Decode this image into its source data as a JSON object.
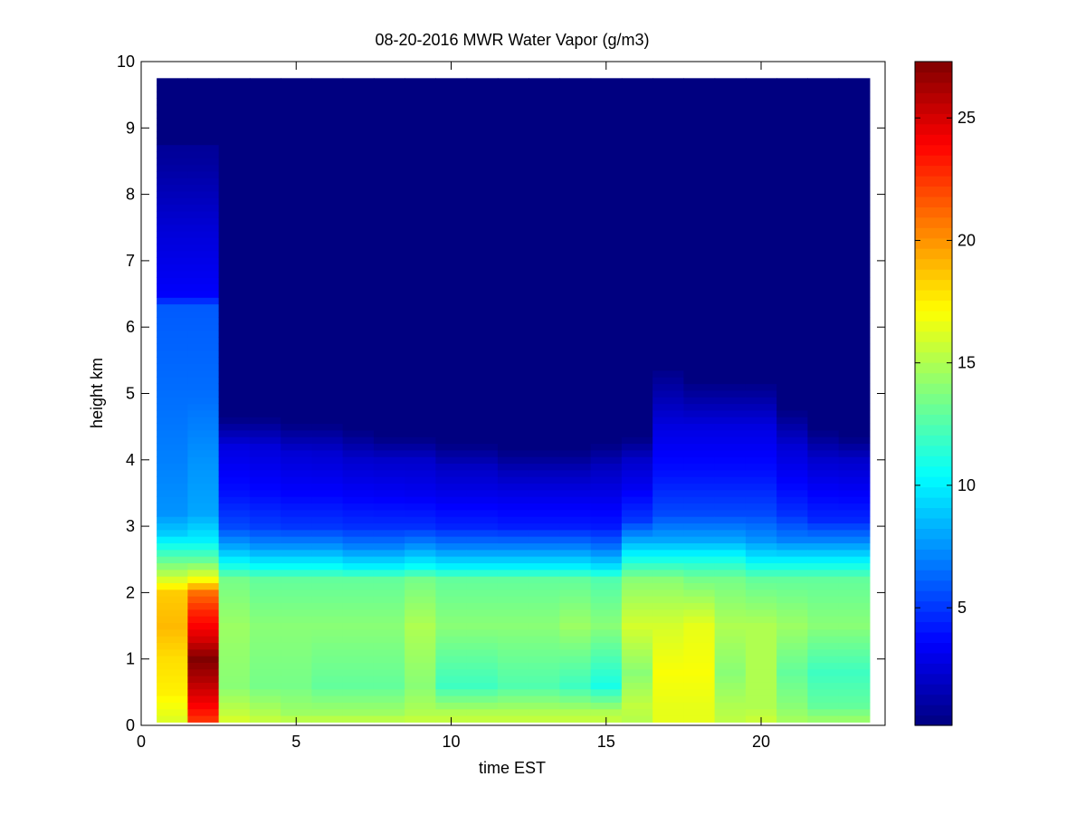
{
  "chart_data": {
    "type": "heatmap",
    "title": "08-20-2016 MWR Water Vapor (g/m3)",
    "xlabel": "time EST",
    "ylabel": "height km",
    "xlim": [
      0,
      24
    ],
    "ylim": [
      0,
      10
    ],
    "x_ticks": [
      0,
      5,
      10,
      15,
      20
    ],
    "y_ticks": [
      0,
      1,
      2,
      3,
      4,
      5,
      6,
      7,
      8,
      9,
      10
    ],
    "colorbar": {
      "colormap": "jet",
      "clim": [
        0.2,
        27.3
      ],
      "ticks": [
        5,
        10,
        15,
        20,
        25
      ]
    },
    "cell_width_hours": 1,
    "cell_height_km": 0.1,
    "grid": false,
    "columns": [
      {
        "x": 1,
        "data_top_km": 8.8,
        "profile": [
          [
            0,
            16
          ],
          [
            0.5,
            17.5
          ],
          [
            1.0,
            18
          ],
          [
            1.5,
            19
          ],
          [
            2.0,
            18.5
          ],
          [
            2.3,
            15
          ],
          [
            2.6,
            12
          ],
          [
            2.9,
            9
          ],
          [
            3.2,
            7.5
          ],
          [
            4.0,
            7
          ],
          [
            5.0,
            6.5
          ],
          [
            6.3,
            6
          ],
          [
            6.5,
            3.5
          ],
          [
            7.5,
            2.5
          ],
          [
            8.5,
            1.0
          ],
          [
            9.8,
            0.2
          ]
        ]
      },
      {
        "x": 2,
        "data_top_km": 8.8,
        "profile": [
          [
            0,
            22
          ],
          [
            0.3,
            24
          ],
          [
            0.7,
            26
          ],
          [
            1.0,
            27.3
          ],
          [
            1.3,
            25
          ],
          [
            1.7,
            23
          ],
          [
            2.0,
            21
          ],
          [
            2.2,
            17
          ],
          [
            2.5,
            13
          ],
          [
            2.8,
            10
          ],
          [
            3.2,
            8
          ],
          [
            4.0,
            7.5
          ],
          [
            5.0,
            6.5
          ],
          [
            6.3,
            6
          ],
          [
            6.5,
            3.5
          ],
          [
            7.5,
            2.5
          ],
          [
            8.5,
            1.0
          ],
          [
            9.8,
            0.2
          ]
        ]
      },
      {
        "x": 3,
        "data_top_km": 4.6,
        "profile": [
          [
            0,
            16.5
          ],
          [
            0.2,
            15.5
          ],
          [
            0.6,
            14
          ],
          [
            1.5,
            14.5
          ],
          [
            2.2,
            13.5
          ],
          [
            2.4,
            11
          ],
          [
            2.7,
            8
          ],
          [
            3.0,
            5.5
          ],
          [
            3.5,
            4
          ],
          [
            4.2,
            2.8
          ],
          [
            4.6,
            0.5
          ],
          [
            9.8,
            0.2
          ]
        ]
      },
      {
        "x": 4,
        "data_top_km": 4.6,
        "profile": [
          [
            0,
            16
          ],
          [
            0.2,
            15
          ],
          [
            0.6,
            13.5
          ],
          [
            1.5,
            14
          ],
          [
            2.2,
            13
          ],
          [
            2.4,
            10.5
          ],
          [
            2.7,
            7.5
          ],
          [
            3.0,
            5.2
          ],
          [
            3.5,
            3.8
          ],
          [
            4.2,
            2.6
          ],
          [
            4.6,
            0.5
          ],
          [
            9.8,
            0.2
          ]
        ]
      },
      {
        "x": 5,
        "data_top_km": 4.5,
        "profile": [
          [
            0,
            16
          ],
          [
            0.2,
            14.5
          ],
          [
            0.6,
            13.5
          ],
          [
            1.5,
            14
          ],
          [
            2.2,
            13
          ],
          [
            2.4,
            10.5
          ],
          [
            2.7,
            7.5
          ],
          [
            3.0,
            5
          ],
          [
            3.5,
            3.6
          ],
          [
            4.1,
            2.5
          ],
          [
            4.5,
            0.5
          ],
          [
            9.8,
            0.2
          ]
        ]
      },
      {
        "x": 6,
        "data_top_km": 4.5,
        "profile": [
          [
            0,
            16
          ],
          [
            0.2,
            14.5
          ],
          [
            0.6,
            13
          ],
          [
            1.5,
            14
          ],
          [
            2.2,
            13
          ],
          [
            2.4,
            10.5
          ],
          [
            2.7,
            7.5
          ],
          [
            3.0,
            5
          ],
          [
            3.5,
            3.6
          ],
          [
            4.1,
            2.4
          ],
          [
            4.5,
            0.5
          ],
          [
            9.8,
            0.2
          ]
        ]
      },
      {
        "x": 7,
        "data_top_km": 4.4,
        "profile": [
          [
            0,
            16
          ],
          [
            0.2,
            14.5
          ],
          [
            0.6,
            13
          ],
          [
            1.5,
            14
          ],
          [
            2.2,
            13
          ],
          [
            2.4,
            10
          ],
          [
            2.7,
            7
          ],
          [
            3.0,
            4.8
          ],
          [
            3.5,
            3.4
          ],
          [
            4.0,
            2.3
          ],
          [
            4.4,
            0.5
          ],
          [
            9.8,
            0.2
          ]
        ]
      },
      {
        "x": 8,
        "data_top_km": 4.3,
        "profile": [
          [
            0,
            16
          ],
          [
            0.2,
            14.5
          ],
          [
            0.6,
            13
          ],
          [
            1.5,
            14
          ],
          [
            2.2,
            13
          ],
          [
            2.4,
            10
          ],
          [
            2.7,
            7
          ],
          [
            3.0,
            4.8
          ],
          [
            3.5,
            3.3
          ],
          [
            4.0,
            2.2
          ],
          [
            4.3,
            0.5
          ],
          [
            9.8,
            0.2
          ]
        ]
      },
      {
        "x": 9,
        "data_top_km": 4.3,
        "profile": [
          [
            0,
            16
          ],
          [
            0.2,
            15
          ],
          [
            0.6,
            14
          ],
          [
            1.5,
            15
          ],
          [
            2.2,
            13.5
          ],
          [
            2.4,
            10.5
          ],
          [
            2.7,
            7.5
          ],
          [
            3.0,
            4.8
          ],
          [
            3.5,
            3.2
          ],
          [
            4.0,
            2.2
          ],
          [
            4.3,
            0.5
          ],
          [
            9.8,
            0.2
          ]
        ]
      },
      {
        "x": 10,
        "data_top_km": 4.2,
        "profile": [
          [
            0,
            16
          ],
          [
            0.2,
            15
          ],
          [
            0.6,
            12
          ],
          [
            1.5,
            14
          ],
          [
            2.2,
            13
          ],
          [
            2.4,
            10
          ],
          [
            2.7,
            7
          ],
          [
            3.0,
            4.5
          ],
          [
            3.5,
            3.0
          ],
          [
            3.9,
            2.0
          ],
          [
            4.2,
            0.5
          ],
          [
            9.8,
            0.2
          ]
        ]
      },
      {
        "x": 11,
        "data_top_km": 4.2,
        "profile": [
          [
            0,
            16
          ],
          [
            0.2,
            15
          ],
          [
            0.6,
            12
          ],
          [
            1.5,
            14
          ],
          [
            2.2,
            13
          ],
          [
            2.4,
            10
          ],
          [
            2.7,
            7
          ],
          [
            3.0,
            4.5
          ],
          [
            3.5,
            3.0
          ],
          [
            3.9,
            2.0
          ],
          [
            4.2,
            0.5
          ],
          [
            9.8,
            0.2
          ]
        ]
      },
      {
        "x": 12,
        "data_top_km": 4.1,
        "profile": [
          [
            0,
            16
          ],
          [
            0.2,
            15
          ],
          [
            0.6,
            12.5
          ],
          [
            1.5,
            14
          ],
          [
            2.2,
            13
          ],
          [
            2.4,
            10
          ],
          [
            2.7,
            7
          ],
          [
            3.0,
            4.3
          ],
          [
            3.5,
            2.9
          ],
          [
            3.8,
            1.9
          ],
          [
            4.1,
            0.5
          ],
          [
            9.8,
            0.2
          ]
        ]
      },
      {
        "x": 13,
        "data_top_km": 4.1,
        "profile": [
          [
            0,
            16
          ],
          [
            0.2,
            15
          ],
          [
            0.6,
            12.5
          ],
          [
            1.5,
            14
          ],
          [
            2.2,
            13
          ],
          [
            2.4,
            10
          ],
          [
            2.7,
            7
          ],
          [
            3.0,
            4.3
          ],
          [
            3.5,
            2.9
          ],
          [
            3.8,
            1.9
          ],
          [
            4.1,
            0.5
          ],
          [
            9.8,
            0.2
          ]
        ]
      },
      {
        "x": 14,
        "data_top_km": 4.1,
        "profile": [
          [
            0,
            16
          ],
          [
            0.2,
            15
          ],
          [
            0.6,
            12
          ],
          [
            1.5,
            14.5
          ],
          [
            2.2,
            13
          ],
          [
            2.4,
            10
          ],
          [
            2.7,
            7
          ],
          [
            3.0,
            4.3
          ],
          [
            3.5,
            2.9
          ],
          [
            3.8,
            1.9
          ],
          [
            4.1,
            0.5
          ],
          [
            9.8,
            0.2
          ]
        ]
      },
      {
        "x": 15,
        "data_top_km": 4.2,
        "profile": [
          [
            0,
            16
          ],
          [
            0.2,
            15
          ],
          [
            0.6,
            11
          ],
          [
            1.5,
            14
          ],
          [
            2.2,
            12.5
          ],
          [
            2.4,
            9.5
          ],
          [
            2.7,
            6.5
          ],
          [
            3.0,
            4.2
          ],
          [
            3.5,
            2.9
          ],
          [
            3.9,
            1.9
          ],
          [
            4.2,
            0.5
          ],
          [
            9.8,
            0.2
          ]
        ]
      },
      {
        "x": 16,
        "data_top_km": 4.3,
        "profile": [
          [
            0,
            15
          ],
          [
            0.3,
            15.5
          ],
          [
            0.8,
            14
          ],
          [
            1.5,
            16
          ],
          [
            2.2,
            14
          ],
          [
            2.5,
            11
          ],
          [
            2.8,
            8
          ],
          [
            3.1,
            5
          ],
          [
            3.6,
            3.2
          ],
          [
            4.0,
            2.2
          ],
          [
            4.3,
            0.5
          ],
          [
            9.8,
            0.2
          ]
        ]
      },
      {
        "x": 17,
        "data_top_km": 5.3,
        "profile": [
          [
            0,
            16.5
          ],
          [
            0.3,
            16.5
          ],
          [
            0.8,
            17
          ],
          [
            1.5,
            16
          ],
          [
            2.2,
            14
          ],
          [
            2.5,
            11
          ],
          [
            2.8,
            8
          ],
          [
            3.2,
            5.5
          ],
          [
            3.8,
            4
          ],
          [
            4.5,
            2.8
          ],
          [
            5.3,
            0.6
          ],
          [
            9.8,
            0.2
          ]
        ]
      },
      {
        "x": 18,
        "data_top_km": 5.1,
        "profile": [
          [
            0,
            16.5
          ],
          [
            0.3,
            16.5
          ],
          [
            0.8,
            17
          ],
          [
            1.5,
            16.5
          ],
          [
            2.2,
            13.5
          ],
          [
            2.5,
            11
          ],
          [
            2.8,
            8
          ],
          [
            3.2,
            5.5
          ],
          [
            3.8,
            4
          ],
          [
            4.5,
            2.8
          ],
          [
            5.1,
            0.6
          ],
          [
            9.8,
            0.2
          ]
        ]
      },
      {
        "x": 19,
        "data_top_km": 5.1,
        "profile": [
          [
            0,
            15.5
          ],
          [
            0.3,
            15
          ],
          [
            0.8,
            14
          ],
          [
            1.5,
            15
          ],
          [
            2.2,
            13.5
          ],
          [
            2.5,
            11
          ],
          [
            2.8,
            8
          ],
          [
            3.2,
            5.5
          ],
          [
            3.8,
            4
          ],
          [
            4.5,
            2.8
          ],
          [
            5.1,
            0.6
          ],
          [
            9.8,
            0.2
          ]
        ]
      },
      {
        "x": 20,
        "data_top_km": 5.1,
        "profile": [
          [
            0,
            16
          ],
          [
            0.3,
            15
          ],
          [
            0.8,
            15
          ],
          [
            1.5,
            15
          ],
          [
            2.2,
            13
          ],
          [
            2.5,
            10
          ],
          [
            2.8,
            7.5
          ],
          [
            3.2,
            5.5
          ],
          [
            3.8,
            4
          ],
          [
            4.5,
            2.8
          ],
          [
            5.1,
            0.6
          ],
          [
            9.8,
            0.2
          ]
        ]
      },
      {
        "x": 21,
        "data_top_km": 4.7,
        "profile": [
          [
            0,
            15
          ],
          [
            0.3,
            14
          ],
          [
            0.8,
            13
          ],
          [
            1.5,
            14.5
          ],
          [
            2.2,
            13
          ],
          [
            2.5,
            10
          ],
          [
            2.8,
            7
          ],
          [
            3.2,
            4.8
          ],
          [
            3.7,
            3.5
          ],
          [
            4.2,
            2.5
          ],
          [
            4.7,
            0.5
          ],
          [
            9.8,
            0.2
          ]
        ]
      },
      {
        "x": 22,
        "data_top_km": 4.4,
        "profile": [
          [
            0,
            15
          ],
          [
            0.3,
            13
          ],
          [
            0.8,
            12
          ],
          [
            1.5,
            14
          ],
          [
            2.2,
            13
          ],
          [
            2.5,
            10
          ],
          [
            2.8,
            7
          ],
          [
            3.1,
            4.6
          ],
          [
            3.6,
            3.3
          ],
          [
            4.0,
            2.3
          ],
          [
            4.4,
            0.5
          ],
          [
            9.8,
            0.2
          ]
        ]
      },
      {
        "x": 23,
        "data_top_km": 4.3,
        "profile": [
          [
            0,
            15
          ],
          [
            0.3,
            13
          ],
          [
            0.8,
            12
          ],
          [
            1.5,
            14
          ],
          [
            2.2,
            13
          ],
          [
            2.5,
            10
          ],
          [
            2.8,
            7
          ],
          [
            3.1,
            4.6
          ],
          [
            3.6,
            3.2
          ],
          [
            4.0,
            2.2
          ],
          [
            4.3,
            0.5
          ],
          [
            9.8,
            0.2
          ]
        ]
      }
    ],
    "background_value": 0.2,
    "data_extent": {
      "x": [
        0.5,
        23.5
      ],
      "y": [
        0.05,
        9.75
      ]
    }
  }
}
